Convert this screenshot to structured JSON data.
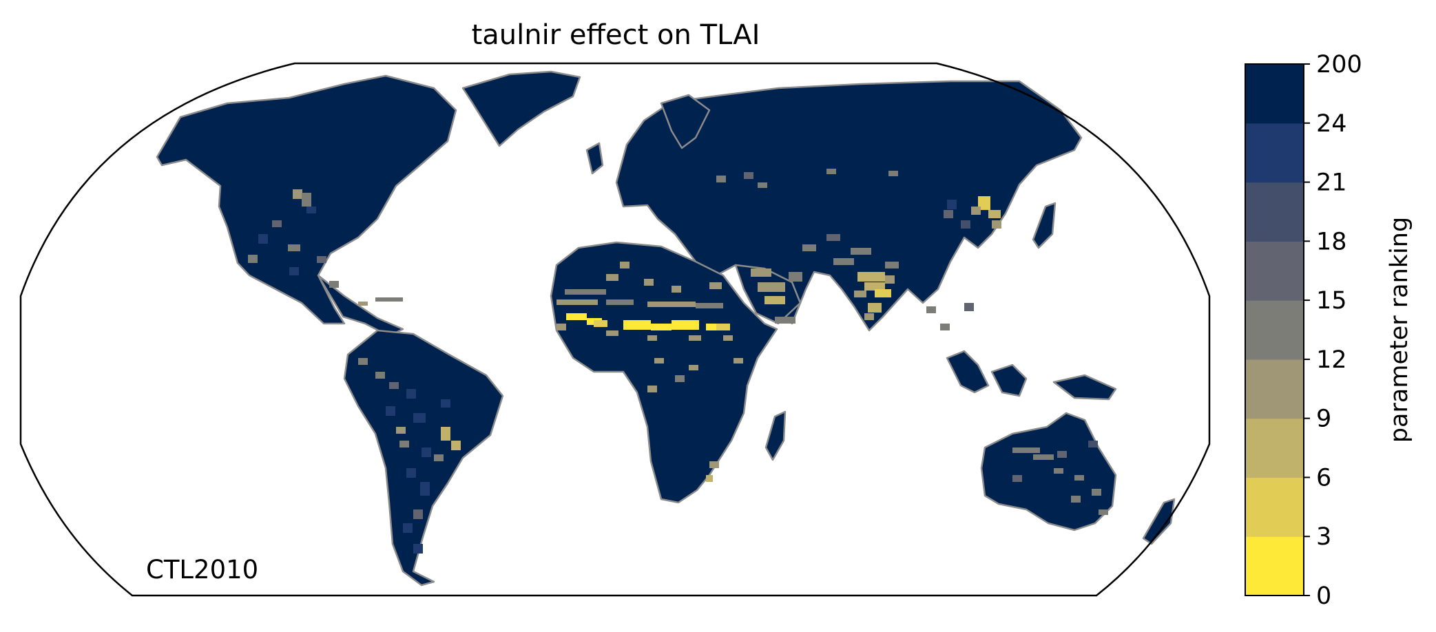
{
  "chart_data": {
    "type": "heatmap",
    "title": "taulnir effect on TLAI",
    "annotation": "CTL2010",
    "projection": "Robinson",
    "colorbar": {
      "label": "parameter ranking",
      "ticks": [
        "0",
        "3",
        "6",
        "9",
        "12",
        "15",
        "18",
        "21",
        "24",
        "200"
      ],
      "bins": [
        {
          "from": 0,
          "to": 3,
          "color": "#fee838"
        },
        {
          "from": 3,
          "to": 6,
          "color": "#e1cc55"
        },
        {
          "from": 6,
          "to": 9,
          "color": "#c1b26b"
        },
        {
          "from": 9,
          "to": 12,
          "color": "#a09776"
        },
        {
          "from": 12,
          "to": 15,
          "color": "#7d7d78"
        },
        {
          "from": 15,
          "to": 18,
          "color": "#626571"
        },
        {
          "from": 18,
          "to": 21,
          "color": "#444f6b"
        },
        {
          "from": 21,
          "to": 24,
          "color": "#1f3a6e"
        },
        {
          "from": 24,
          "to": 200,
          "color": "#00224e"
        }
      ]
    },
    "land_fill_color": "#00224e",
    "coastline_color": "#8c8c8c"
  }
}
